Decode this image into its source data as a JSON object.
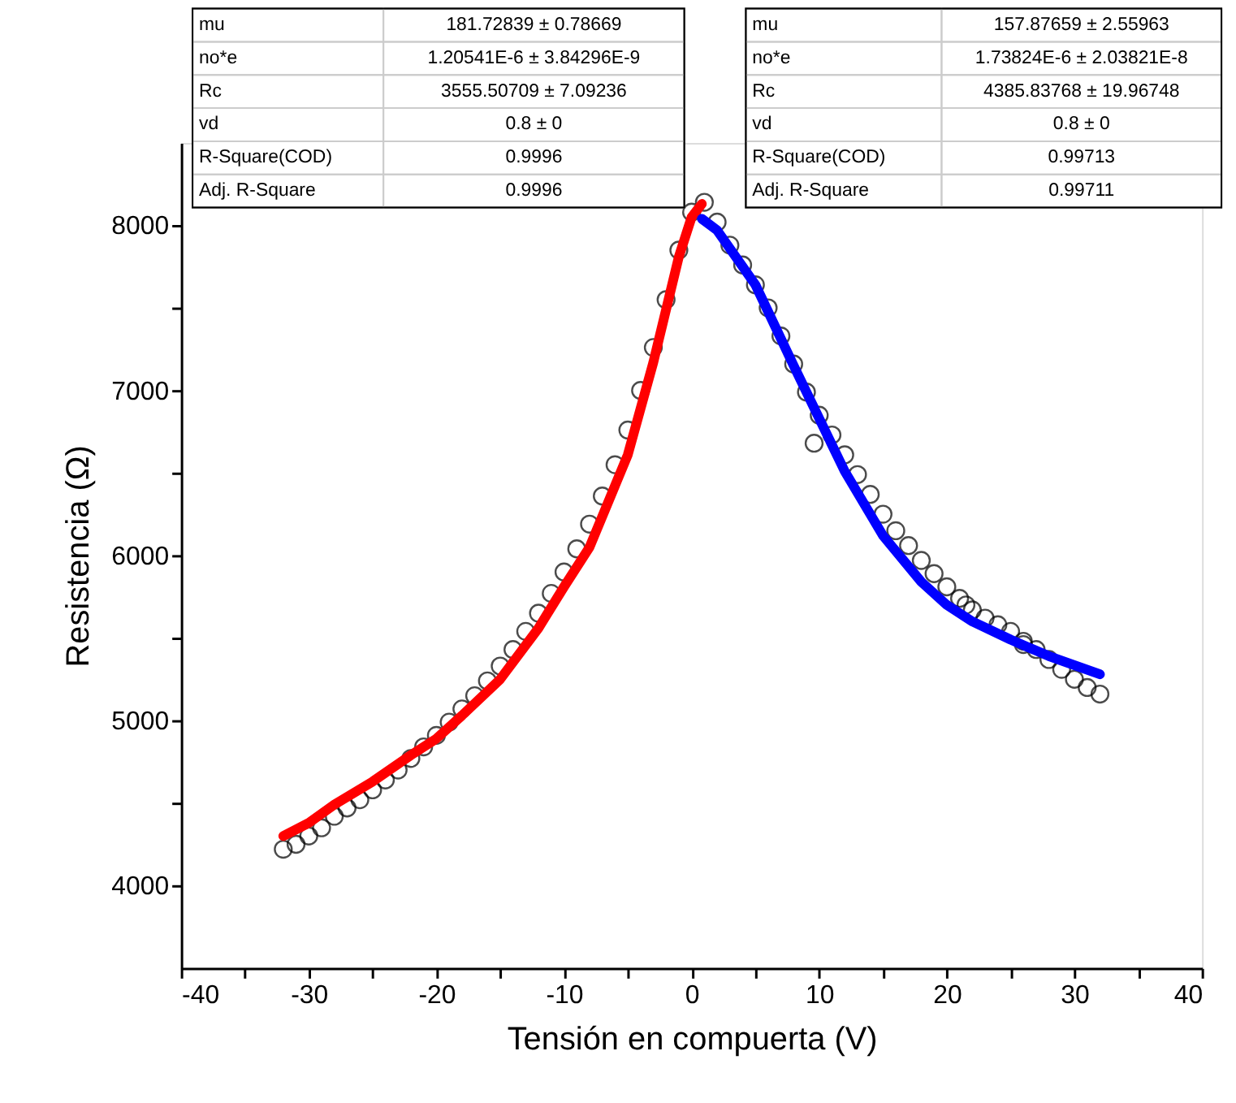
{
  "chart_data": {
    "type": "scatter",
    "xlabel": "Tensión en compuerta (V)",
    "ylabel": "Resistencia (Ω)",
    "xlim": [
      -40,
      40
    ],
    "ylim": [
      3500,
      8500
    ],
    "xticks": [
      -40,
      {
        "value": -35,
        "label": null
      },
      -30,
      {
        "value": -25,
        "label": null
      },
      -20,
      {
        "value": -15,
        "label": null
      },
      -10,
      {
        "value": -5,
        "label": null
      },
      0,
      {
        "value": 5,
        "label": null
      },
      10,
      {
        "value": 15,
        "label": null
      },
      20,
      {
        "value": 25,
        "label": null
      },
      30,
      {
        "value": 35,
        "label": null
      },
      40
    ],
    "yticks": [
      4000,
      {
        "value": 4500,
        "label": null
      },
      5000,
      {
        "value": 5500,
        "label": null
      },
      6000,
      {
        "value": 6500,
        "label": null
      },
      7000,
      {
        "value": 7500,
        "label": null
      },
      8000
    ],
    "grid": false,
    "marker": "circle",
    "series": [
      {
        "color": "#000000",
        "x": [
          -32,
          -31,
          -30,
          -29,
          -28,
          -27,
          -26,
          -25,
          -24,
          -23,
          -22,
          -21,
          -20,
          -19,
          -18,
          -17,
          -16,
          -15,
          -14,
          -13,
          -12,
          -11,
          -10,
          -9,
          -8,
          -7,
          -6,
          -5,
          -4,
          -3,
          -2,
          -1,
          0,
          1,
          2,
          3,
          4,
          5,
          6,
          7,
          8,
          9,
          9.6,
          10,
          11,
          12,
          13,
          14,
          15,
          16,
          17,
          18,
          19,
          20,
          21,
          21.5,
          22,
          23,
          24,
          25,
          26,
          26,
          27,
          28,
          29,
          30,
          31,
          32
        ],
        "values": [
          4220,
          4250,
          4300,
          4350,
          4420,
          4470,
          4520,
          4580,
          4640,
          4700,
          4770,
          4840,
          4910,
          4990,
          5070,
          5150,
          5240,
          5330,
          5430,
          5540,
          5650,
          5770,
          5900,
          6040,
          6190,
          6360,
          6550,
          6760,
          7000,
          7260,
          7550,
          7850,
          8080,
          8140,
          8020,
          7880,
          7760,
          7640,
          7500,
          7330,
          7160,
          6990,
          6680,
          6850,
          6730,
          6610,
          6490,
          6370,
          6250,
          6150,
          6060,
          5970,
          5890,
          5810,
          5740,
          5700,
          5670,
          5620,
          5580,
          5540,
          5480,
          5460,
          5430,
          5370,
          5310,
          5250,
          5200,
          5160
        ]
      },
      {
        "type": "line",
        "marker": "none",
        "color": "#ff0000",
        "x": [
          -32,
          -30,
          -28,
          -25,
          -22,
          -20,
          -18,
          -15,
          -12,
          -10,
          -8,
          -5,
          -3,
          -1,
          0,
          0.8
        ],
        "values": [
          4300,
          4380,
          4490,
          4630,
          4790,
          4890,
          5030,
          5250,
          5560,
          5810,
          6050,
          6610,
          7170,
          7810,
          8050,
          8130
        ]
      },
      {
        "type": "line",
        "marker": "none",
        "color": "#0000ff",
        "x": [
          0.8,
          2,
          5,
          8,
          10,
          12,
          15,
          18,
          20,
          22,
          25,
          28,
          32
        ],
        "values": [
          8040,
          7970,
          7640,
          7150,
          6830,
          6510,
          6120,
          5840,
          5700,
          5600,
          5490,
          5390,
          5280
        ]
      }
    ],
    "annotations": [
      "mu",
      "181.72839 ± 0.78669",
      "no*e",
      "1.20541E-6 ± 3.84296E-9",
      "Rc",
      "3555.50709 ± 7.09236",
      "vd",
      "0.8 ± 0",
      "R-Square(COD)",
      "0.9996",
      "Adj. R-Square",
      "0.9996",
      "mu",
      "157.87659 ± 2.55963",
      "no*e",
      "1.73824E-6 ± 2.03821E-8",
      "Rc",
      "4385.83768 ± 19.96748",
      "vd",
      "0.8 ± 0",
      "R-Square(COD)",
      "0.99713",
      "Adj. R-Square",
      "0.99711"
    ]
  }
}
